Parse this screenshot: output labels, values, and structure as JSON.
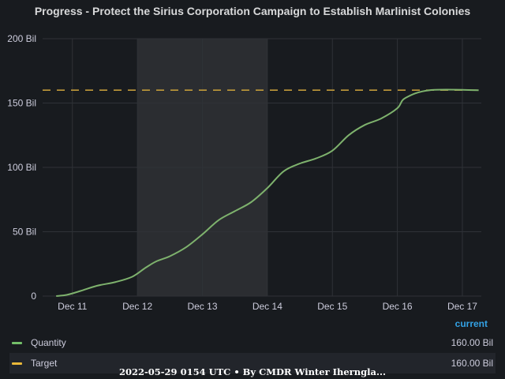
{
  "chart_data": {
    "type": "line",
    "title": "Progress - Protect the Sirius Corporation Campaign to Establish Marlinist Colonies",
    "xlabel": "",
    "ylabel": "",
    "x_tick_labels": [
      "Dec 11",
      "Dec 12",
      "Dec 13",
      "Dec 14",
      "Dec 15",
      "Dec 16",
      "Dec 17"
    ],
    "y_tick_labels": [
      "0",
      "50 Bil",
      "100 Bil",
      "150 Bil",
      "200 Bil"
    ],
    "y_ticks": [
      0,
      50,
      100,
      150,
      200
    ],
    "ylim": [
      0,
      200
    ],
    "xlim": [
      "2022-12-10T13:00",
      "2022-12-17T07:00"
    ],
    "highlight_region": {
      "from": "2022-12-12T00:00",
      "to": "2022-12-14T00:00"
    },
    "grid": true,
    "legend_position": "bottom",
    "legend_header": "current",
    "series": [
      {
        "name": "Quantity",
        "color": "#73bf69",
        "current": "160.00 Bil",
        "x": [
          "2022-12-10T18:00",
          "2022-12-10T22:00",
          "2022-12-11T03:00",
          "2022-12-11T09:00",
          "2022-12-11T16:00",
          "2022-12-11T22:00",
          "2022-12-12T03:00",
          "2022-12-12T07:00",
          "2022-12-12T12:00",
          "2022-12-12T18:00",
          "2022-12-13T00:00",
          "2022-12-13T06:00",
          "2022-12-13T12:00",
          "2022-12-13T18:00",
          "2022-12-14T00:00",
          "2022-12-14T06:00",
          "2022-12-14T12:00",
          "2022-12-14T18:00",
          "2022-12-15T00:00",
          "2022-12-15T06:00",
          "2022-12-15T12:00",
          "2022-12-15T18:00",
          "2022-12-16T00:00",
          "2022-12-16T03:00",
          "2022-12-16T12:00",
          "2022-12-17T06:00"
        ],
        "values": [
          0,
          1,
          4,
          8,
          11,
          15,
          22,
          27,
          31,
          38,
          48,
          59,
          66,
          73,
          84,
          97,
          103,
          107,
          113,
          125,
          133,
          138,
          146,
          154,
          160,
          160
        ]
      },
      {
        "name": "Target",
        "color": "#fade2a",
        "current": "160.00 Bil",
        "style": "dashed",
        "x": [
          "2022-12-10T13:00",
          "2022-12-17T07:00"
        ],
        "values": [
          160,
          160
        ]
      }
    ]
  },
  "footer": "2022-05-29 0154 UTC • By CMDR Winter Iherngla..."
}
